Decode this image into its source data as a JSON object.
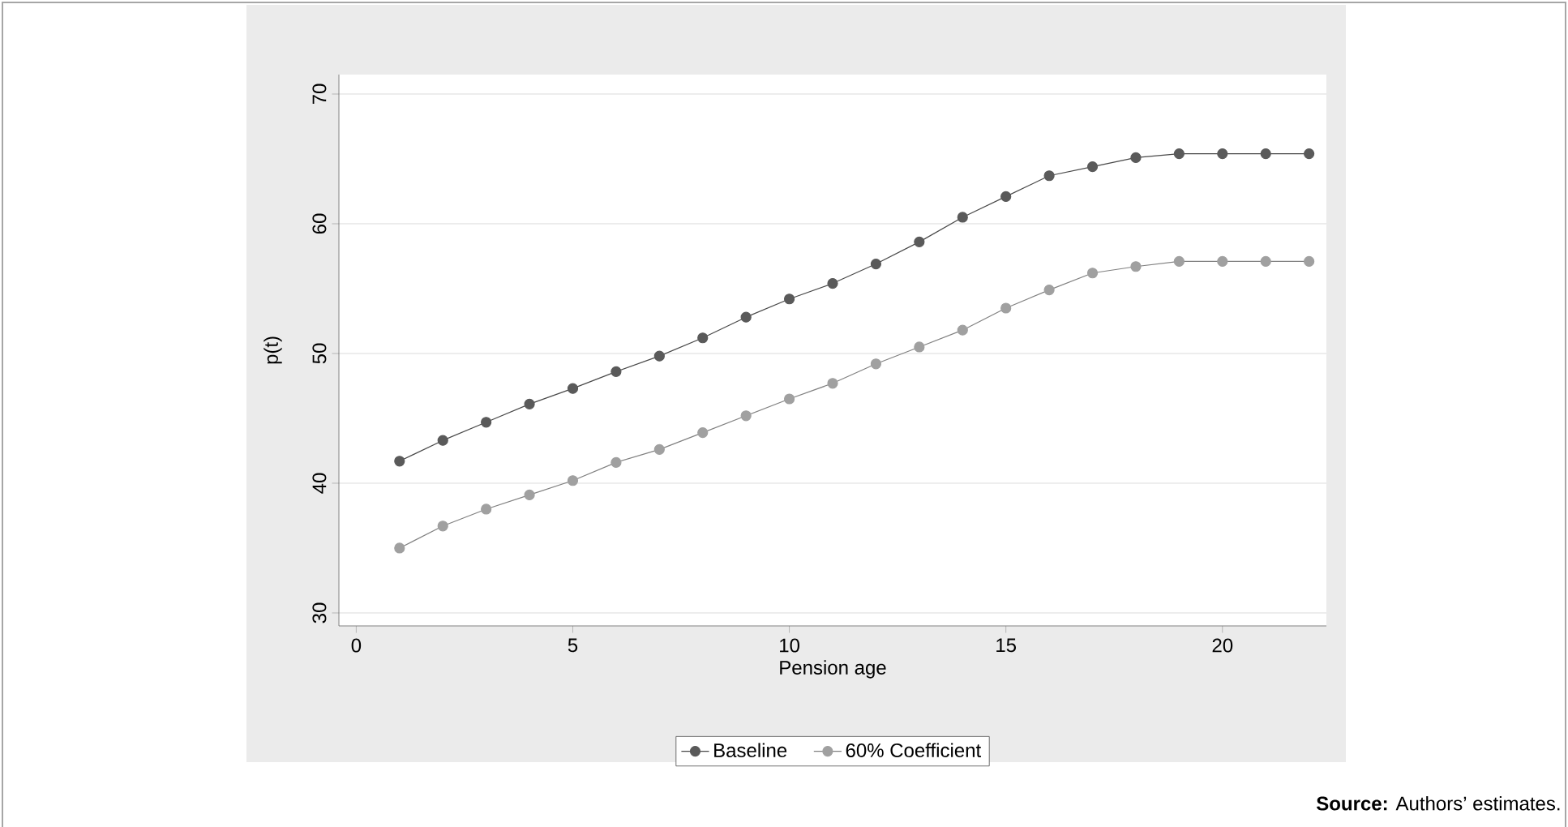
{
  "chart_data": {
    "type": "line",
    "xlabel": "Pension age",
    "ylabel": "p(t)",
    "x": [
      1,
      2,
      3,
      4,
      5,
      6,
      7,
      8,
      9,
      10,
      11,
      12,
      13,
      14,
      15,
      16,
      17,
      18,
      19,
      20,
      21,
      22
    ],
    "series": [
      {
        "name": "Baseline",
        "color": "#5a5a5a",
        "values": [
          41.7,
          43.3,
          44.7,
          46.1,
          47.3,
          48.6,
          49.8,
          51.2,
          52.8,
          54.2,
          55.4,
          56.9,
          58.6,
          60.5,
          62.1,
          63.7,
          64.4,
          65.1,
          65.4,
          65.4,
          65.4,
          65.4
        ]
      },
      {
        "name": "60% Coefficient",
        "color": "#a0a0a0",
        "values": [
          35.0,
          36.7,
          38.0,
          39.1,
          40.2,
          41.6,
          42.6,
          43.9,
          45.2,
          46.5,
          47.7,
          49.2,
          50.5,
          51.8,
          53.5,
          54.9,
          56.2,
          56.7,
          57.1,
          57.1,
          57.1,
          57.1
        ]
      }
    ],
    "xlim": [
      -0.4,
      22.4
    ],
    "ylim": [
      29,
      71.5
    ],
    "xticks": [
      0,
      5,
      10,
      15,
      20
    ],
    "yticks": [
      30,
      40,
      50,
      60,
      70
    ],
    "grid": "y",
    "legend": "bottom",
    "marker": "circle",
    "line_style": "solid",
    "annotations": [
      "**Source:** Authors’ estimates."
    ]
  }
}
